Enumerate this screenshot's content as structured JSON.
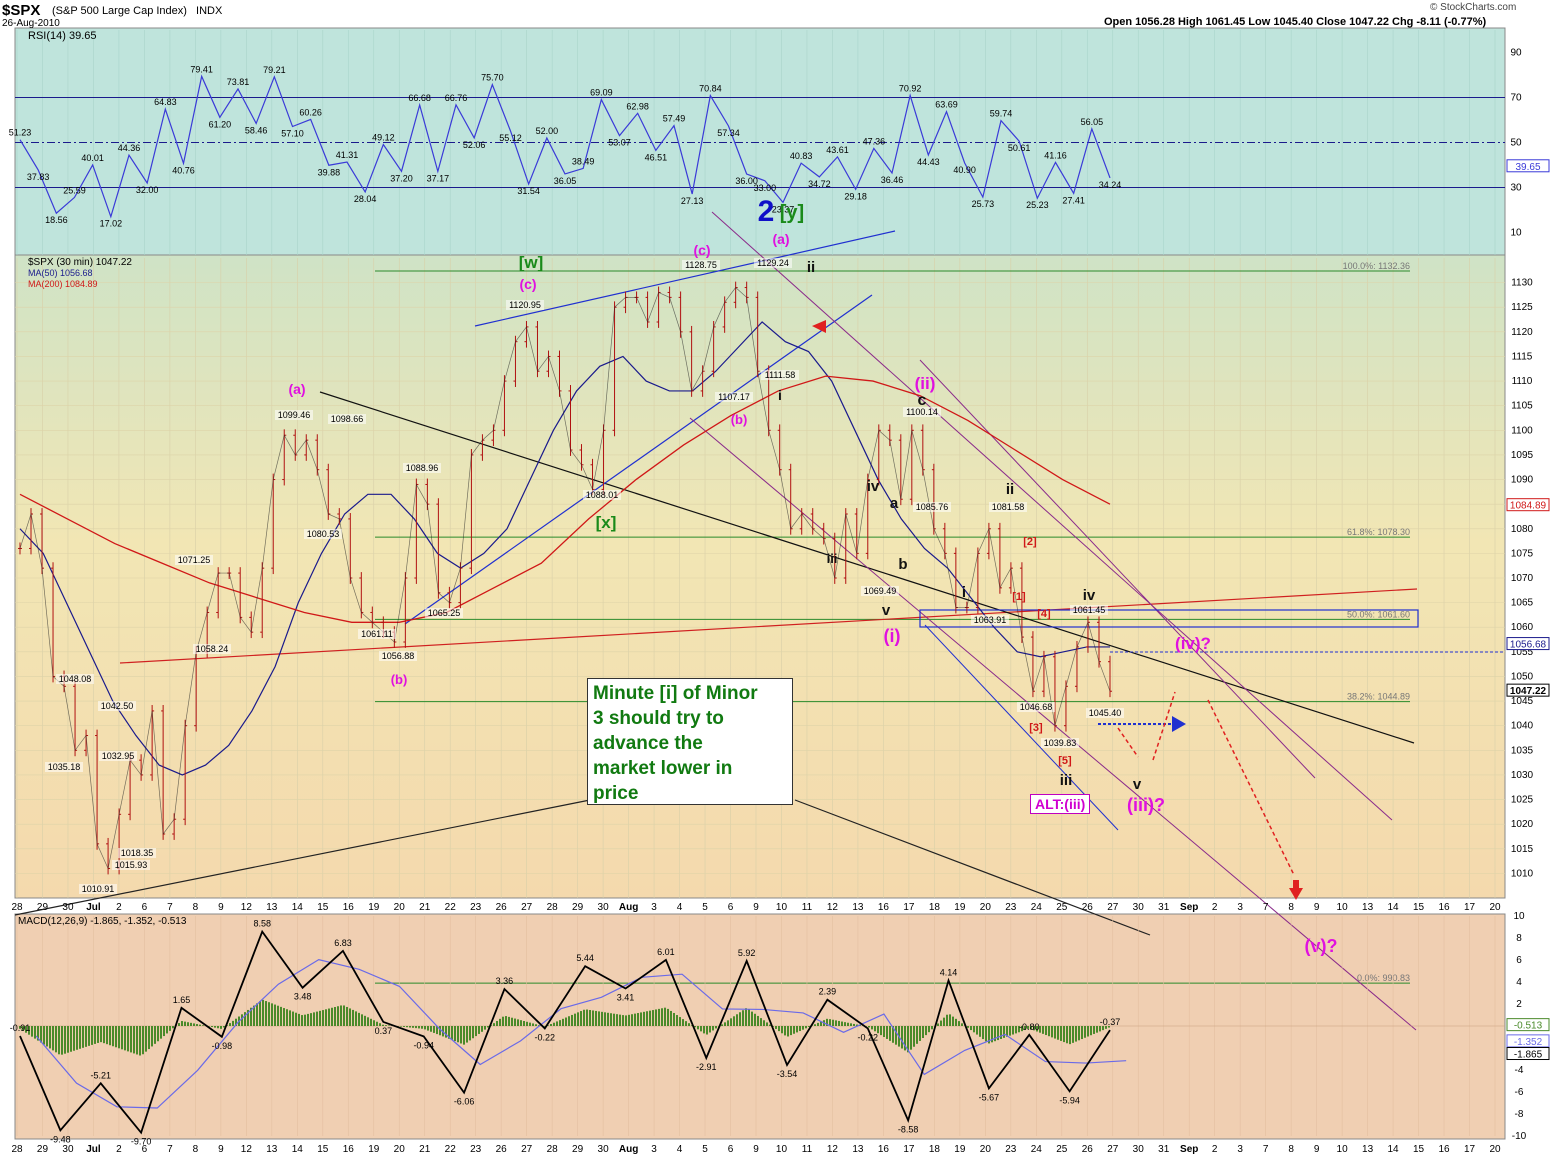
{
  "header": {
    "ticker": "$SPX",
    "name": "(S&P 500 Large Cap Index)",
    "exchange": "INDX",
    "date": "26-Aug-2010",
    "quote": "Open 1056.28  High 1061.45  Low 1045.40  Close 1047.22  Chg -8.11 (-0.77%)",
    "brand": "© StockCharts.com"
  },
  "rsi_panel": {
    "label": "RSI(14) 39.65",
    "current": "39.65",
    "ticks": [
      "90",
      "70",
      "50",
      "30",
      "10"
    ]
  },
  "price_panel": {
    "legend_main": "$SPX (30 min) 1047.22",
    "legend_ma50": "MA(50) 1056.68",
    "legend_ma200": "MA(200) 1084.89",
    "ma50_flag": "1056.68",
    "ma200_flag": "1084.89",
    "close_flag": "1047.22"
  },
  "macd_panel": {
    "label": "MACD(12,26,9) -1.865, -1.352, -0.513",
    "flags": [
      "-0.513",
      "-1.352",
      "-1.865"
    ],
    "ticks": [
      "10",
      "8",
      "6",
      "4",
      "2",
      "0",
      "-2",
      "-4",
      "-6",
      "-8",
      "-10"
    ]
  },
  "callout": {
    "lines": [
      "Minute [i] of Minor",
      "3 should try to",
      "advance the",
      "market lower in",
      "price"
    ]
  },
  "alt_label": "ALT:(iii)",
  "colors": {
    "rsi_bg": "#bfe4dc",
    "macd_bg": "#f0cfb2",
    "ma50": "#1a1a8c",
    "ma200": "#d01818",
    "wave_magenta": "#e010e0",
    "wave_green": "#1a8a1a",
    "wave_blue": "#1010c8",
    "fib_green": "#2a8a2a",
    "channel_purple": "#8a2a8a"
  },
  "chart_data": [
    {
      "type": "line",
      "title": "RSI(14) 39.65",
      "ylim": [
        0,
        100
      ],
      "reference_lines": [
        70,
        50,
        30
      ],
      "annotations": [
        "51.23",
        "37.83",
        "18.56",
        "25.59",
        "40.01",
        "17.02",
        "44.36",
        "32.00",
        "64.83",
        "40.76",
        "79.41",
        "61.20",
        "73.81",
        "58.46",
        "79.21",
        "57.10",
        "60.26",
        "39.88",
        "41.31",
        "28.04",
        "49.12",
        "37.20",
        "66.68",
        "37.17",
        "66.76",
        "52.06",
        "75.70",
        "55.12",
        "31.54",
        "52.00",
        "36.05",
        "38.49",
        "69.09",
        "53.07",
        "62.98",
        "46.51",
        "57.49",
        "27.13",
        "70.84",
        "57.34",
        "36.00",
        "33.00",
        "23.37",
        "40.83",
        "34.72",
        "43.61",
        "29.18",
        "47.36",
        "36.46",
        "70.92",
        "44.43",
        "63.69",
        "40.90",
        "25.73",
        "59.74",
        "50.61",
        "25.23",
        "41.16",
        "27.41",
        "56.05",
        "34.24"
      ]
    },
    {
      "type": "line",
      "title": "$SPX (30 min) 1047.22",
      "ylim": [
        1005,
        1135
      ],
      "ticks": [
        1130,
        1125,
        1120,
        1115,
        1110,
        1105,
        1100,
        1095,
        1090,
        1085,
        1080,
        1075,
        1070,
        1065,
        1060,
        1055,
        1050,
        1045,
        1040,
        1035,
        1030,
        1025,
        1020,
        1015,
        1010
      ],
      "x_labels": [
        "28",
        "29",
        "30",
        "Jul",
        "2",
        "6",
        "7",
        "8",
        "9",
        "12",
        "13",
        "14",
        "15",
        "16",
        "19",
        "20",
        "21",
        "22",
        "23",
        "26",
        "27",
        "28",
        "29",
        "30",
        "Aug",
        "3",
        "4",
        "5",
        "6",
        "9",
        "10",
        "11",
        "12",
        "13",
        "16",
        "17",
        "18",
        "19",
        "20",
        "23",
        "24",
        "25",
        "26",
        "27",
        "30",
        "31",
        "Sep",
        "2",
        "3",
        "7",
        "8",
        "9",
        "10",
        "13",
        "14",
        "15",
        "16",
        "17",
        "20"
      ],
      "series": [
        {
          "name": "$SPX (30 min) 1047.22",
          "values": [
            1076,
            1083,
            1072,
            1050,
            1048,
            1035,
            1038,
            1016,
            1011,
            1022,
            1033,
            1030,
            1043,
            1018,
            1021,
            1040,
            1055,
            1063,
            1071,
            1071,
            1062,
            1059,
            1072,
            1090,
            1099,
            1095,
            1098,
            1092,
            1083,
            1082,
            1070,
            1063,
            1061,
            1059,
            1057,
            1070,
            1089,
            1085,
            1067,
            1065,
            1072,
            1095,
            1098,
            1100,
            1110,
            1118,
            1121,
            1112,
            1115,
            1108,
            1096,
            1093,
            1088,
            1100,
            1125,
            1127,
            1127,
            1122,
            1128,
            1127,
            1120,
            1108,
            1112,
            1121,
            1126,
            1129,
            1127,
            1112,
            1100,
            1092,
            1080,
            1083,
            1080,
            1078,
            1070,
            1083,
            1075,
            1090,
            1100,
            1098,
            1086,
            1100,
            1092,
            1080,
            1075,
            1064,
            1064,
            1075,
            1080,
            1068,
            1072,
            1058,
            1047,
            1054,
            1040,
            1048,
            1056,
            1061,
            1053,
            1047
          ]
        },
        {
          "name": "MA(50) 1056.68",
          "values": [
            1080,
            1075,
            1065,
            1055,
            1045,
            1038,
            1032,
            1030,
            1032,
            1036,
            1043,
            1052,
            1065,
            1075,
            1083,
            1087,
            1087,
            1082,
            1075,
            1072,
            1075,
            1080,
            1090,
            1100,
            1108,
            1113,
            1115,
            1110,
            1108,
            1108,
            1112,
            1117,
            1122,
            1118,
            1116,
            1110,
            1100,
            1090,
            1082,
            1076,
            1072,
            1066,
            1060,
            1055,
            1054,
            1055,
            1056,
            1056
          ]
        },
        {
          "name": "MA(200) 1084.89",
          "values": [
            1087,
            1082,
            1077,
            1073,
            1069,
            1066,
            1063,
            1061,
            1061,
            1063,
            1068,
            1073,
            1082,
            1090,
            1097,
            1103,
            1108,
            1111,
            1110,
            1107,
            1102,
            1096,
            1090,
            1085
          ]
        }
      ],
      "annotations": [
        "1010.91",
        "1015.93",
        "1018.35",
        "1032.95",
        "1035.18",
        "1042.50",
        "1048.08",
        "1058.24",
        "1071.25",
        "1099.46",
        "1080.53",
        "1098.66",
        "1061.11",
        "1056.88",
        "1088.96",
        "1065.25",
        "1120.95",
        "1088.01",
        "1128.75",
        "1107.17",
        "1129.24",
        "1111.58",
        "1100.14",
        "1069.49",
        "1085.76",
        "1081.58",
        "1063.91",
        "1061.45",
        "1046.68",
        "1039.83",
        "1045.40"
      ],
      "wave_labels": [
        "2",
        "[y]",
        "[w]",
        "(c)",
        "(a)",
        "(c)",
        "(a)",
        "(b)",
        "(b)",
        "[x]",
        "ii",
        "i",
        "(ii)",
        "c",
        "iv",
        "a",
        "b",
        "iii",
        "v",
        "(i)",
        "ii",
        "i",
        "[1]",
        "[2]",
        "[3]",
        "[4]",
        "[5]",
        "iii",
        "iv",
        "v",
        "(iii)?",
        "(iv)?",
        "(v)?",
        "ALT:(iii)"
      ],
      "fib_levels": [
        {
          "label": "100.0%: 1132.36",
          "value": 1132.36
        },
        {
          "label": "61.8%: 1078.30",
          "value": 1078.3
        },
        {
          "label": "50.0%: 1061.60",
          "value": 1061.6
        },
        {
          "label": "38.2%: 1044.89",
          "value": 1044.89
        },
        {
          "label": "0.0%: 990.83",
          "value": 990.83
        }
      ]
    },
    {
      "type": "line",
      "title": "MACD(12,26,9) -1.865, -1.352, -0.513",
      "ylim": [
        -10,
        10
      ],
      "annotations": [
        "-0.91",
        "-9.48",
        "-5.21",
        "-9.70",
        "1.65",
        "-0.98",
        "8.58",
        "3.48",
        "6.83",
        "0.37",
        "-0.94",
        "-6.06",
        "3.36",
        "-0.22",
        "5.44",
        "3.41",
        "6.01",
        "-2.91",
        "5.92",
        "-3.54",
        "2.39",
        "-0.22",
        "-8.58",
        "4.14",
        "-5.67",
        "-0.80",
        "-5.94",
        "-0.37"
      ]
    }
  ]
}
